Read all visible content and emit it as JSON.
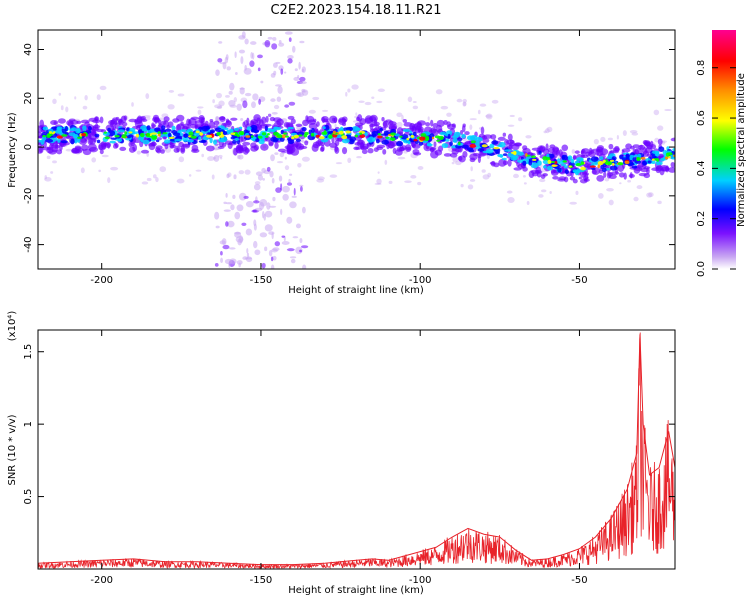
{
  "title": "C2E2.2023.154.18.11.R21",
  "chart_data": [
    {
      "type": "heatmap",
      "xlabel": "Height of straight line (km)",
      "ylabel": "Frequency (Hz)",
      "xlim": [
        -220,
        -20
      ],
      "ylim": [
        -50,
        48
      ],
      "x_ticks": [
        -200,
        -150,
        -100,
        -50
      ],
      "y_ticks": [
        -40,
        -20,
        0,
        20,
        40
      ],
      "colorbar": {
        "label": "Normalized spectral amplitude",
        "range": [
          0.0,
          0.95
        ],
        "ticks": [
          0.0,
          0.2,
          0.4,
          0.6,
          0.8
        ],
        "colors": [
          "#ffffff",
          "#c9a8f2",
          "#6a00ff",
          "#0000ff",
          "#00d0ff",
          "#00ff00",
          "#ffff00",
          "#ff8c00",
          "#ff0000",
          "#ff0090"
        ]
      },
      "ridge": {
        "x": [
          -220,
          -200,
          -180,
          -160,
          -140,
          -120,
          -100,
          -90,
          -80,
          -70,
          -60,
          -50,
          -40,
          -30,
          -20
        ],
        "y": [
          5,
          5,
          5,
          5,
          5,
          5,
          4,
          3,
          0,
          -3,
          -6,
          -8,
          -6,
          -5,
          -3
        ]
      },
      "vertical_band_x": -150
    },
    {
      "type": "line",
      "xlabel": "Height of straight line (km)",
      "ylabel": "SNR (10 * v/v)",
      "multiplier": "(x10⁴)",
      "xlim": [
        -220,
        -20
      ],
      "ylim": [
        0,
        1.65
      ],
      "x_ticks": [
        -200,
        -150,
        -100,
        -50
      ],
      "y_ticks": [
        0.5,
        1.0,
        1.5
      ],
      "series": [
        {
          "color": "#e8232a",
          "x": [
            -220,
            -210,
            -200,
            -190,
            -180,
            -170,
            -160,
            -150,
            -140,
            -130,
            -120,
            -115,
            -110,
            -105,
            -100,
            -95,
            -90,
            -85,
            -80,
            -75,
            -70,
            -65,
            -60,
            -55,
            -50,
            -45,
            -40,
            -35,
            -32,
            -31,
            -30,
            -28,
            -25,
            -22,
            -20
          ],
          "y": [
            0.04,
            0.05,
            0.06,
            0.07,
            0.05,
            0.05,
            0.04,
            0.03,
            0.03,
            0.04,
            0.06,
            0.07,
            0.06,
            0.09,
            0.12,
            0.15,
            0.22,
            0.28,
            0.24,
            0.22,
            0.13,
            0.06,
            0.07,
            0.1,
            0.14,
            0.22,
            0.35,
            0.55,
            0.8,
            1.62,
            1.0,
            0.65,
            0.7,
            0.95,
            0.7
          ]
        }
      ]
    }
  ]
}
